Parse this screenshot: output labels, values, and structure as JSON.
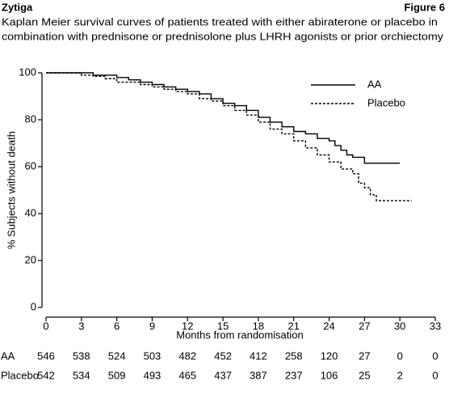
{
  "header": {
    "title": "Zytiga",
    "figure": "Figure 6"
  },
  "caption": [
    "Kaplan Meier survival curves of patients treated with either abiraterone or placebo in",
    "combination with prednisone or prednisolone plus LHRH agonists or prior orchiectomy"
  ],
  "chart_data": {
    "type": "step",
    "y_label": "% Subjects without death",
    "x_label": "Months from randomisation",
    "xlim": [
      0,
      33
    ],
    "ylim": [
      0,
      100
    ],
    "xticks": [
      0,
      3,
      6,
      9,
      12,
      15,
      18,
      21,
      24,
      27,
      30,
      33
    ],
    "yticks": [
      0,
      20,
      40,
      60,
      80,
      100
    ],
    "legend_position": "upper right",
    "series": [
      {
        "name": "AA",
        "color": "#000000",
        "style": "solid",
        "x": [
          0,
          3,
          4,
          6,
          7,
          8,
          9,
          10,
          11,
          12,
          13,
          14,
          15,
          16,
          17,
          18,
          19,
          20,
          21,
          22,
          23,
          24,
          24.5,
          25,
          25.5,
          26,
          27,
          30
        ],
        "values": [
          100,
          100,
          99,
          98,
          97,
          96,
          95,
          94,
          93,
          92,
          91,
          89,
          87,
          86,
          84,
          81,
          79,
          77,
          75,
          74,
          72,
          71,
          69,
          67,
          65,
          64,
          61.5,
          61.5
        ]
      },
      {
        "name": "Placebo",
        "color": "#000000",
        "style": "dashed",
        "x": [
          0,
          3,
          4,
          5,
          6,
          8,
          9,
          10,
          11,
          12,
          13,
          14,
          15,
          16,
          17,
          18,
          19,
          20,
          21,
          22,
          23,
          24,
          25,
          26,
          26.5,
          27,
          27.5,
          28,
          31
        ],
        "values": [
          100,
          99,
          98.5,
          97.5,
          96,
          95,
          94,
          93,
          92,
          91,
          89,
          88,
          86,
          84,
          82,
          79,
          76,
          74,
          71,
          68,
          65,
          62,
          59,
          57,
          53,
          51,
          48,
          45.5,
          45.5
        ]
      }
    ]
  },
  "risk_table": {
    "rows": [
      {
        "label": "AA",
        "values": [
          546,
          538,
          524,
          503,
          482,
          452,
          412,
          258,
          120,
          27,
          0,
          0
        ]
      },
      {
        "label": "Placebo",
        "values": [
          542,
          534,
          509,
          493,
          465,
          437,
          387,
          237,
          106,
          25,
          2,
          0
        ]
      }
    ]
  }
}
